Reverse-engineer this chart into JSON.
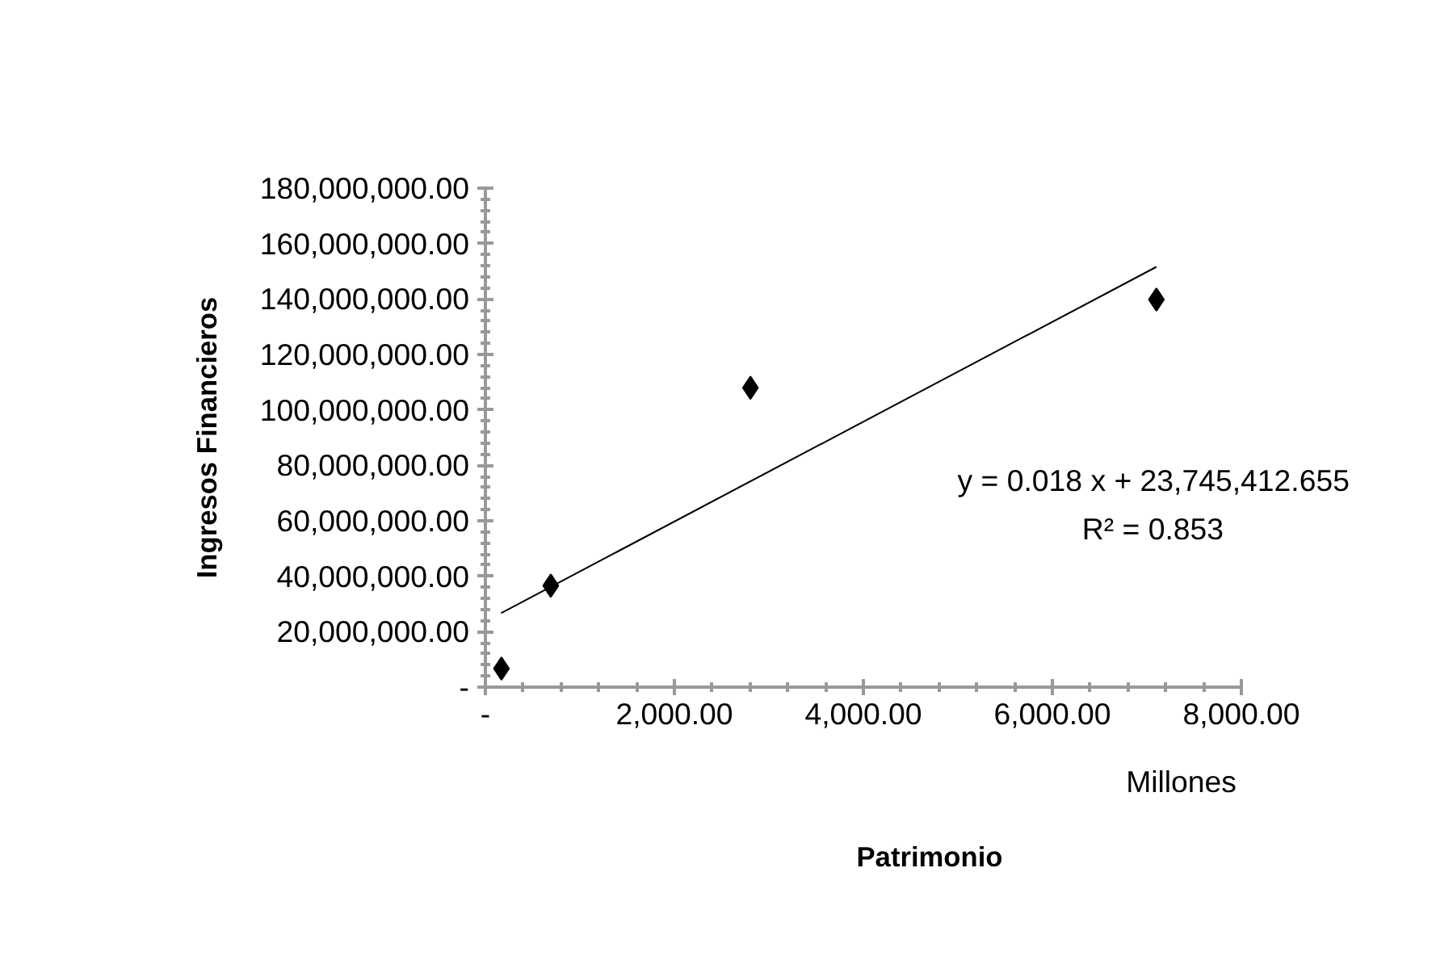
{
  "chart_data": {
    "type": "scatter",
    "xlabel": "Patrimonio",
    "ylabel": "Ingresos Financieros",
    "grid": false,
    "series": [
      {
        "marker": "diamond",
        "color": "#000000",
        "x": [
          170,
          692,
          2805,
          7101
        ],
        "values": [
          6700000,
          36600000,
          108000000,
          139800000
        ]
      },
      {
        "type": "line",
        "color": "#000000",
        "x": [
          166,
          7101
        ],
        "values": [
          26700000,
          151600000
        ]
      }
    ],
    "xlim": [
      0,
      8000
    ],
    "xticks": [
      {
        "value": 0,
        "label": "-"
      },
      {
        "value": 2000,
        "label": "2,000.00"
      },
      {
        "value": 4000,
        "label": "4,000.00"
      },
      {
        "value": 6000,
        "label": "6,000.00"
      },
      {
        "value": 8000,
        "label": "8,000.00"
      }
    ],
    "ylim": [
      0,
      180000000
    ],
    "yticks": [
      {
        "value": 0,
        "label": "-"
      },
      {
        "value": 20000000,
        "label": "20,000,000.00"
      },
      {
        "value": 40000000,
        "label": "40,000,000.00"
      },
      {
        "value": 60000000,
        "label": "60,000,000.00"
      },
      {
        "value": 80000000,
        "label": "80,000,000.00"
      },
      {
        "value": 100000000,
        "label": "100,000,000.00"
      },
      {
        "value": 120000000,
        "label": "120,000,000.00"
      },
      {
        "value": 140000000,
        "label": "140,000,000.00"
      },
      {
        "value": 160000000,
        "label": "160,000,000.00"
      },
      {
        "value": 180000000,
        "label": "180,000,000.00"
      }
    ],
    "annotations": [
      "Millones",
      "y = 0.018 x + 23,745,412.655",
      "R² = 0.853"
    ]
  }
}
